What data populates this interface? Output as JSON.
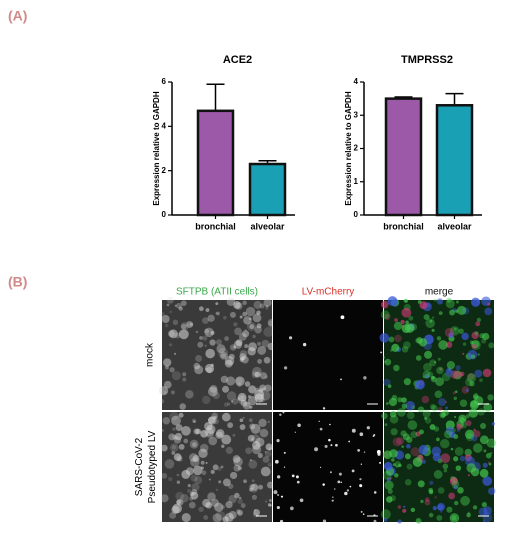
{
  "panel_labels": [
    "(A)",
    "(B)"
  ],
  "chart_data": [
    {
      "type": "bar",
      "title": "ACE2",
      "y_label": "Expression relative to GAPDH",
      "categories": [
        "bronchial",
        "alveolar"
      ],
      "values": [
        4.7,
        2.3
      ],
      "errors": [
        1.2,
        0.15
      ],
      "colors": [
        "#9b59a8",
        "#1aa0b5"
      ],
      "ylim": [
        0,
        6
      ],
      "yticks": [
        0,
        2,
        4,
        6
      ]
    },
    {
      "type": "bar",
      "title": "TMPRSS2",
      "y_label": "Expression relative to GAPDH",
      "categories": [
        "bronchial",
        "alveolar"
      ],
      "values": [
        3.5,
        3.3
      ],
      "errors": [
        0.05,
        0.35
      ],
      "colors": [
        "#9b59a8",
        "#1aa0b5"
      ],
      "ylim": [
        0,
        4
      ],
      "yticks": [
        0,
        1,
        2,
        3,
        4
      ]
    }
  ],
  "images": {
    "columns": [
      "SFTPB (ATII cells)",
      "LV-mCherry",
      "merge"
    ],
    "column_colors": [
      "#3aa84a",
      "#d9302a",
      "#111111"
    ],
    "rows": [
      [
        "mock"
      ],
      [
        "SARS-CoV-2",
        "Pseudotyped LV"
      ]
    ]
  }
}
